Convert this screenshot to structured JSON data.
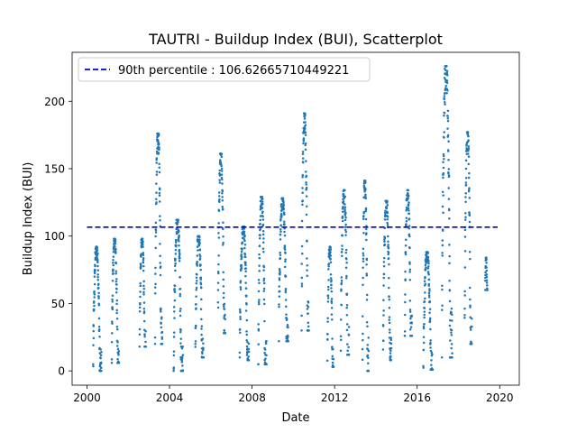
{
  "chart_data": {
    "type": "scatter",
    "title": "TAUTRI - Buildup Index (BUI), Scatterplot",
    "xlabel": "Date",
    "ylabel": "Buildup Index (BUI)",
    "xlim": [
      1999.28,
      2020.95
    ],
    "ylim": [
      -10.6,
      236.3
    ],
    "xticks": [
      2000,
      2004,
      2008,
      2012,
      2016,
      2020
    ],
    "xtick_labels": [
      "2000",
      "2004",
      "2008",
      "2012",
      "2016",
      "2020"
    ],
    "yticks": [
      0,
      50,
      100,
      150,
      200
    ],
    "ytick_labels": [
      "0",
      "50",
      "100",
      "150",
      "200"
    ],
    "grid": false,
    "legend": {
      "placement": "top-left",
      "entries": [
        {
          "label": "90th percentile : 106.62665710449221",
          "style": "dashed",
          "color": "#0000cd"
        }
      ]
    },
    "reference_line": {
      "y": 106.62665710449221,
      "x_start": 2000.0,
      "x_end": 2019.9
    },
    "marker_color": "#1f77b4",
    "seasons": [
      {
        "x_start": 2000.3,
        "x_end": 2000.7,
        "y_start": 0,
        "y_peak": 92
      },
      {
        "x_start": 2001.2,
        "x_end": 2001.55,
        "y_start": 6,
        "y_peak": 98
      },
      {
        "x_start": 2002.55,
        "x_end": 2002.85,
        "y_start": 18,
        "y_peak": 98
      },
      {
        "x_start": 2003.3,
        "x_end": 2003.65,
        "y_start": 20,
        "y_peak": 176
      },
      {
        "x_start": 2004.2,
        "x_end": 2004.65,
        "y_start": 0,
        "y_peak": 112
      },
      {
        "x_start": 2005.25,
        "x_end": 2005.65,
        "y_start": 10,
        "y_peak": 100
      },
      {
        "x_start": 2006.35,
        "x_end": 2006.7,
        "y_start": 28,
        "y_peak": 161
      },
      {
        "x_start": 2007.4,
        "x_end": 2007.85,
        "y_start": 8,
        "y_peak": 107
      },
      {
        "x_start": 2008.3,
        "x_end": 2008.7,
        "y_start": 5,
        "y_peak": 129
      },
      {
        "x_start": 2009.3,
        "x_end": 2009.75,
        "y_start": 22,
        "y_peak": 128
      },
      {
        "x_start": 2010.4,
        "x_end": 2010.75,
        "y_start": 30,
        "y_peak": 191
      },
      {
        "x_start": 2011.65,
        "x_end": 2011.95,
        "y_start": 3,
        "y_peak": 92
      },
      {
        "x_start": 2012.3,
        "x_end": 2012.7,
        "y_start": 12,
        "y_peak": 134
      },
      {
        "x_start": 2013.35,
        "x_end": 2013.65,
        "y_start": 0,
        "y_peak": 141
      },
      {
        "x_start": 2014.35,
        "x_end": 2014.75,
        "y_start": 8,
        "y_peak": 126
      },
      {
        "x_start": 2015.4,
        "x_end": 2015.75,
        "y_start": 26,
        "y_peak": 134
      },
      {
        "x_start": 2016.3,
        "x_end": 2016.75,
        "y_start": 1,
        "y_peak": 88
      },
      {
        "x_start": 2017.2,
        "x_end": 2017.7,
        "y_start": 10,
        "y_peak": 226
      },
      {
        "x_start": 2018.3,
        "x_end": 2018.65,
        "y_start": 20,
        "y_peak": 177
      },
      {
        "x_start": 2019.3,
        "x_end": 2019.4,
        "y_start": 60,
        "y_peak": 84
      }
    ]
  }
}
